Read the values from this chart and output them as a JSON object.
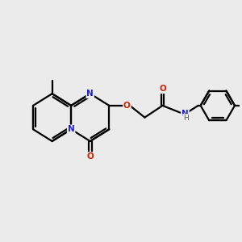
{
  "bg_color": "#ebebeb",
  "bond_color": "#000000",
  "N_color": "#2222cc",
  "O_color": "#cc2200",
  "NH_color": "#336666",
  "lw": 1.6,
  "xlim": [
    0,
    10
  ],
  "ylim": [
    0,
    9
  ]
}
